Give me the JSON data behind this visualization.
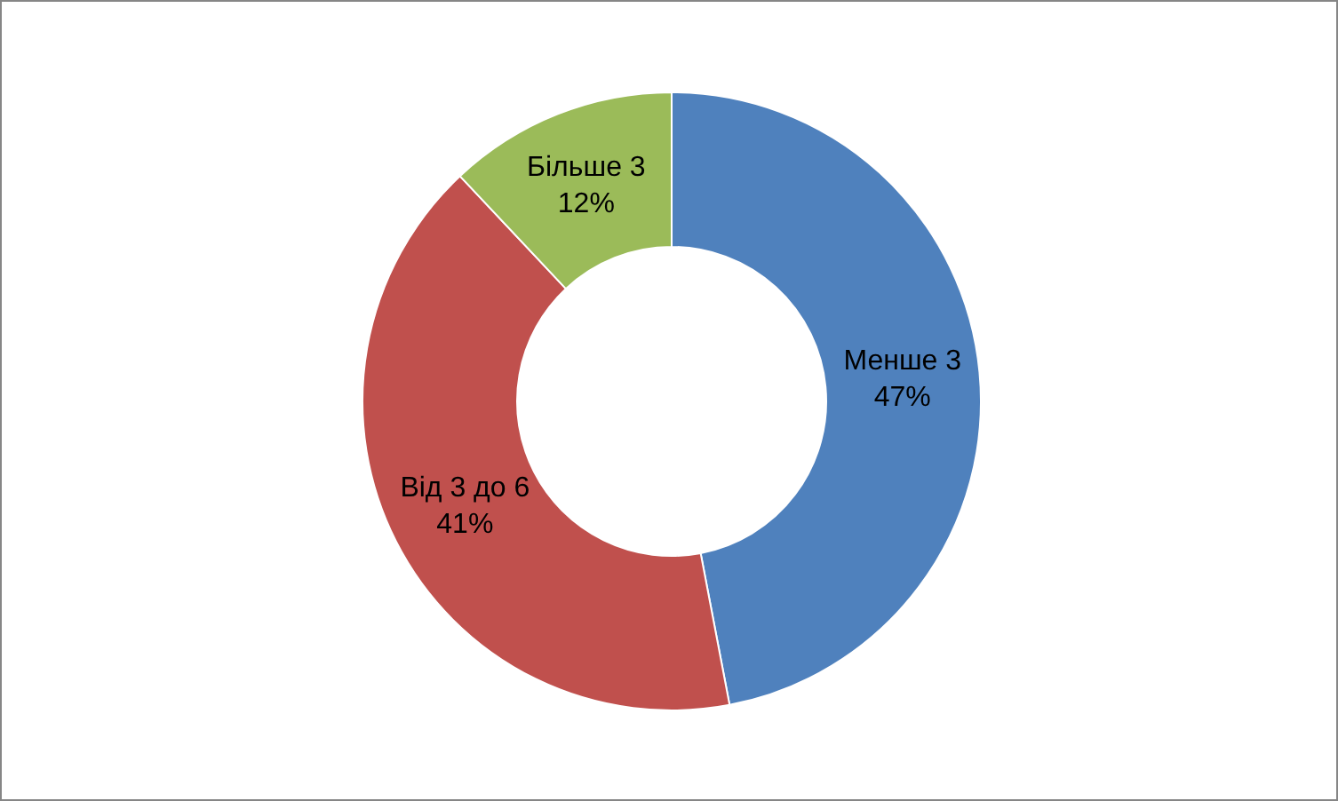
{
  "chart_data": {
    "type": "donut",
    "categories": [
      "Менше 3",
      "Від 3 до 6",
      "Більше 3"
    ],
    "values": [
      47,
      41,
      12
    ],
    "value_labels": [
      "47%",
      "41%",
      "12%"
    ],
    "colors": [
      "#4f81bd",
      "#c0504d",
      "#9bbb59"
    ],
    "legend": false
  }
}
